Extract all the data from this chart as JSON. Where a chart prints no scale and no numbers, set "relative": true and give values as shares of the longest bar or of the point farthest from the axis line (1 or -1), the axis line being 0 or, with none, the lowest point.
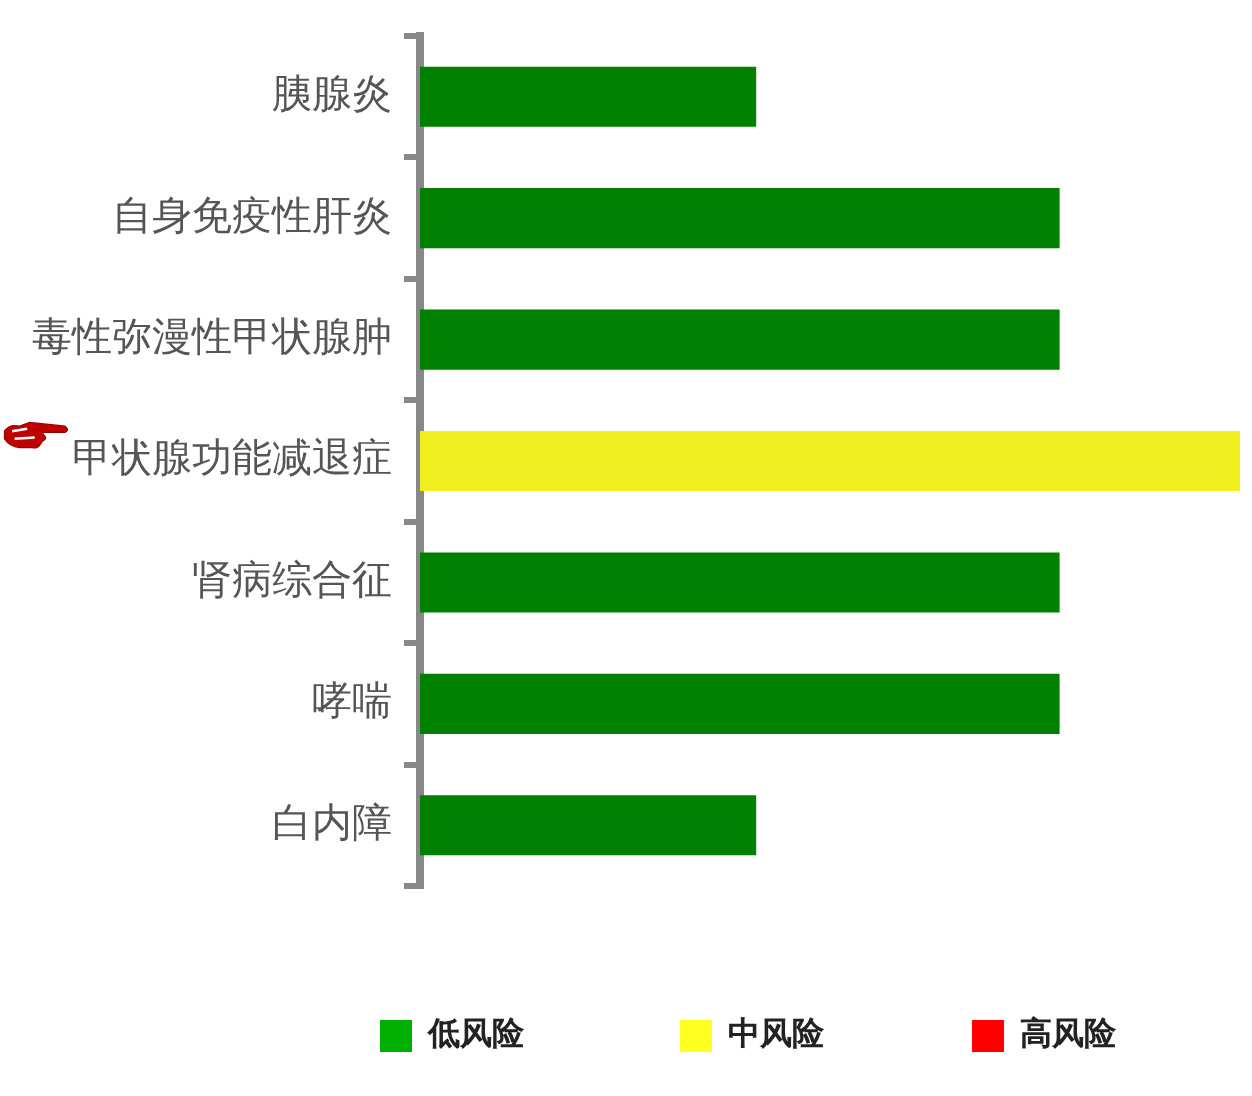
{
  "chart_data": {
    "type": "bar",
    "orientation": "horizontal",
    "relative": true,
    "categories": [
      "胰腺炎",
      "自身免疫性肝炎",
      "毒性弥漫性甲状腺肿",
      "甲状腺功能减退症",
      "肾病综合征",
      "哮喘",
      "白内障"
    ],
    "values": [
      0.41,
      0.78,
      0.78,
      1,
      0.78,
      0.78,
      0.41
    ],
    "colors": [
      "#008000",
      "#008000",
      "#008000",
      "#f0f020",
      "#008000",
      "#008000",
      "#008000"
    ],
    "annotations": [
      "低风险",
      "中风险",
      "高风险"
    ],
    "legend": false
  }
}
